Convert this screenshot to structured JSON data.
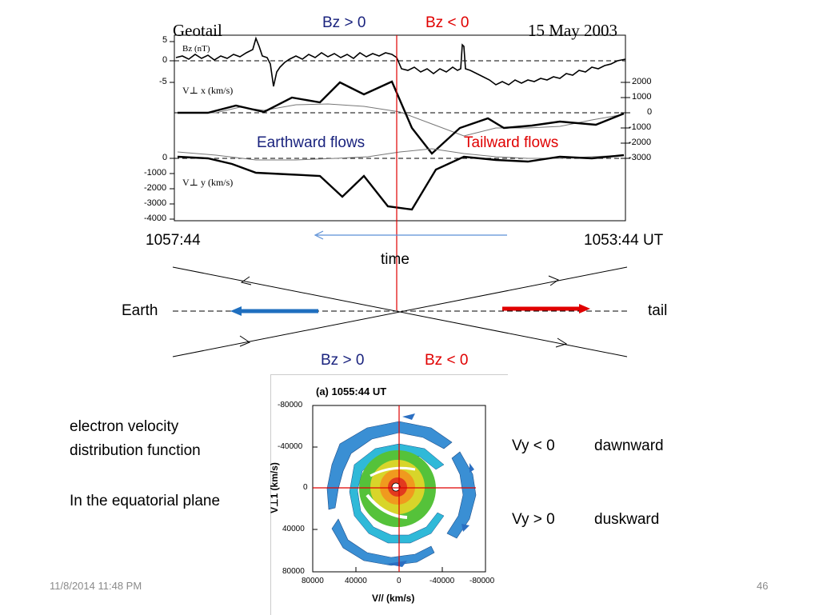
{
  "plot": {
    "spacecraft": "Geotail",
    "date": "15 May 2003",
    "bz_gt_label": "Bz > 0",
    "bz_lt_label": "Bz < 0",
    "bz_panel_label": "Bz (nT)",
    "vx_panel_label": "V⊥ x (km/s)",
    "vy_panel_label": "V⊥ y (km/s)",
    "bz_ticks": [
      "5",
      "0",
      "-5"
    ],
    "right_ticks": [
      "2000",
      "1000",
      "0",
      "-1000",
      "-2000",
      "-3000"
    ],
    "left_ticks": [
      "0",
      "-1000",
      "-2000",
      "-3000",
      "-4000"
    ],
    "earthward_label": "Earthward flows",
    "tailward_label": "Tailward flows",
    "time_left": "1057:44",
    "time_right": "1053:44 UT",
    "time_label": "time"
  },
  "diagram": {
    "earth_label": "Earth",
    "tail_label": "tail",
    "bz_gt_label": "Bz > 0",
    "bz_lt_label": "Bz < 0"
  },
  "distribution": {
    "title": "(a) 1055:44 UT",
    "y_label": "V⊥1 (km/s)",
    "x_label": "V// (km/s)",
    "y_ticks": [
      "-80000",
      "-40000",
      "0",
      "40000",
      "80000"
    ],
    "x_ticks": [
      "80000",
      "40000",
      "0",
      "-40000",
      "-80000"
    ]
  },
  "side_text": {
    "line1": "electron velocity",
    "line2": "distribution function",
    "line3": "In the equatorial plane",
    "vy_neg": "Vy < 0",
    "vy_neg_dir": "dawnward",
    "vy_pos": "Vy > 0",
    "vy_pos_dir": "duskward"
  },
  "footer": {
    "date": "11/8/2014 11:48 PM",
    "page": "46"
  },
  "colors": {
    "red": "#e00000",
    "navy": "#1a237e",
    "blue_arrow": "#1f6fbf",
    "thin_arrow": "#5b8fd6"
  }
}
